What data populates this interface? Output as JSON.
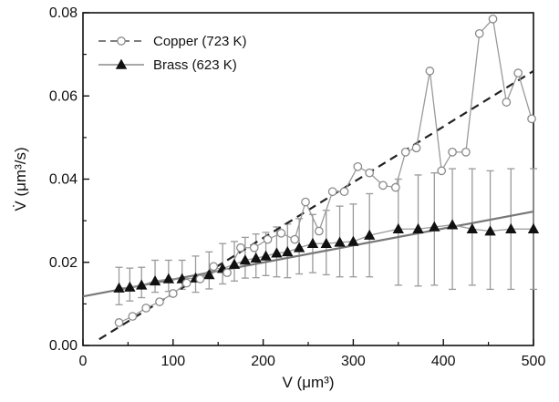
{
  "chart_data": {
    "type": "scatter",
    "xlabel": "V (μm³)",
    "ylabel": "V̇ (μm³/s)",
    "xlim": [
      0,
      500
    ],
    "ylim": [
      0,
      0.08
    ],
    "xticks": [
      0,
      100,
      200,
      300,
      400,
      500
    ],
    "xtick_labels": [
      "0",
      "100",
      "200",
      "300",
      "400",
      "500"
    ],
    "yticks": [
      0.0,
      0.02,
      0.04,
      0.06,
      0.08
    ],
    "ytick_labels": [
      "0.00",
      "0.02",
      "0.04",
      "0.06",
      "0.08"
    ],
    "grid": false,
    "legend_position": "top-left",
    "series": [
      {
        "name": "Copper (723 K)",
        "marker": "open-circle",
        "color": "#888888",
        "x": [
          40,
          55,
          70,
          85,
          100,
          115,
          130,
          145,
          160,
          175,
          190,
          205,
          220,
          235,
          247,
          262,
          277,
          290,
          305,
          318,
          333,
          347,
          358,
          370,
          385,
          398,
          410,
          425,
          440,
          455,
          470,
          483,
          498
        ],
        "y": [
          0.0055,
          0.007,
          0.009,
          0.0105,
          0.0125,
          0.015,
          0.016,
          0.019,
          0.0175,
          0.0235,
          0.0235,
          0.0255,
          0.027,
          0.0255,
          0.0345,
          0.0275,
          0.037,
          0.037,
          0.043,
          0.0415,
          0.0385,
          0.038,
          0.0465,
          0.0475,
          0.066,
          0.042,
          0.0465,
          0.0465,
          0.075,
          0.0785,
          0.0585,
          0.0655,
          0.0545
        ]
      },
      {
        "name": "Brass (623 K)",
        "marker": "filled-triangle",
        "color": "#111111",
        "x": [
          40,
          52,
          65,
          80,
          95,
          110,
          125,
          140,
          155,
          168,
          180,
          192,
          203,
          215,
          227,
          240,
          255,
          270,
          285,
          300,
          318,
          350,
          372,
          390,
          410,
          432,
          452,
          475,
          500
        ],
        "y": [
          0.0138,
          0.014,
          0.0145,
          0.0155,
          0.016,
          0.016,
          0.0162,
          0.017,
          0.0185,
          0.0195,
          0.0205,
          0.021,
          0.0215,
          0.0222,
          0.0225,
          0.0235,
          0.0245,
          0.0245,
          0.0248,
          0.025,
          0.0265,
          0.028,
          0.028,
          0.0285,
          0.029,
          0.028,
          0.0275,
          0.028,
          0.028
        ],
        "err_low": [
          0.0098,
          0.0107,
          0.0115,
          0.0128,
          0.013,
          0.0135,
          0.0128,
          0.0136,
          0.0148,
          0.0155,
          0.0162,
          0.0163,
          0.0168,
          0.0165,
          0.0163,
          0.0172,
          0.0175,
          0.017,
          0.0165,
          0.0165,
          0.0165,
          0.0145,
          0.0143,
          0.0145,
          0.0135,
          0.0145,
          0.0135,
          0.0135,
          0.0135
        ],
        "err_high": [
          0.0188,
          0.0186,
          0.0188,
          0.0205,
          0.0205,
          0.0205,
          0.0215,
          0.0225,
          0.0245,
          0.025,
          0.026,
          0.0268,
          0.0272,
          0.0285,
          0.0292,
          0.0305,
          0.0315,
          0.0325,
          0.0335,
          0.034,
          0.0365,
          0.04,
          0.041,
          0.0415,
          0.0425,
          0.0425,
          0.042,
          0.0425,
          0.0425
        ]
      }
    ],
    "fits": [
      {
        "series": "Copper (723 K)",
        "style": "dashed",
        "color": "#222222",
        "x": [
          18,
          500
        ],
        "y": [
          0.0015,
          0.066
        ]
      },
      {
        "series": "Brass (623 K)",
        "style": "solid",
        "color": "#777777",
        "x": [
          0,
          500
        ],
        "y": [
          0.0118,
          0.0322
        ]
      }
    ]
  }
}
